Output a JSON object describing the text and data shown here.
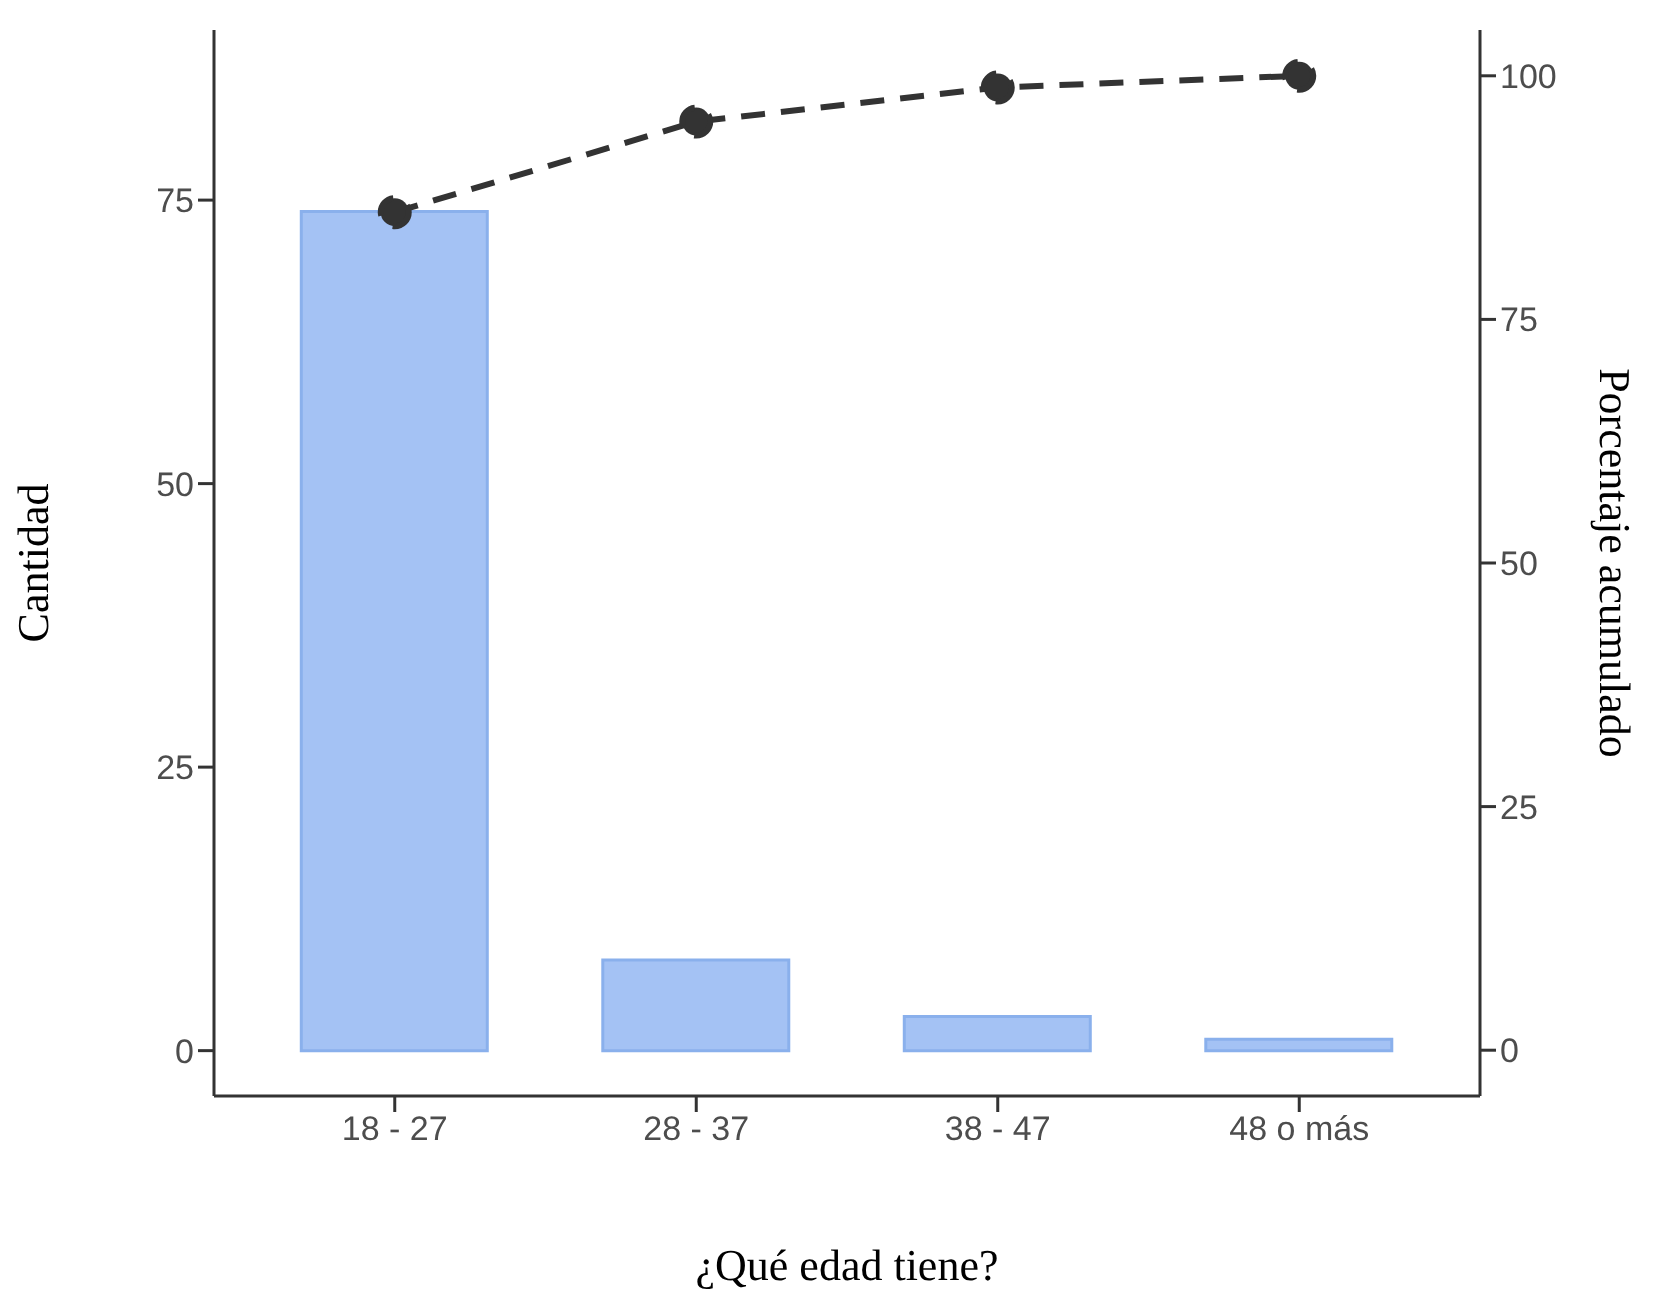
{
  "chart_data": {
    "type": "bar",
    "xlabel": "¿Qué edad tiene?",
    "ylabel": "Cantidad",
    "y2label": "Porcentaje acumulado",
    "categories": [
      "18 - 27",
      "28 - 37",
      "38 - 47",
      "48 o más"
    ],
    "series": [
      {
        "color": "#a4c2f4",
        "values": [
          74,
          8,
          3,
          1
        ]
      },
      {
        "type": "line",
        "axis": "y2",
        "color": "#333333",
        "values": [
          86.0,
          95.3,
          98.8,
          100
        ],
        "line_style": "dashed",
        "marker": "circle"
      }
    ],
    "ylim": [
      -4,
      90
    ],
    "yticks": [
      0,
      25,
      50,
      75
    ],
    "y2lim": [
      -4.7,
      104.7
    ],
    "y2ticks": [
      0,
      25,
      50,
      75,
      100
    ],
    "legend": false,
    "grid": false
  }
}
